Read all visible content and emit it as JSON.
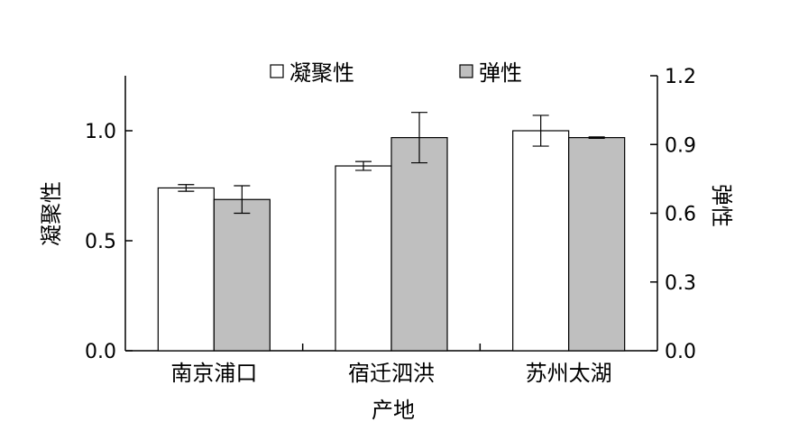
{
  "chart_data": {
    "type": "bar",
    "xlabel": "产地",
    "ylabel_left": "凝聚性",
    "ylabel_right": "弹性",
    "categories": [
      "南京浦口",
      "宿迁泗洪",
      "苏州太湖"
    ],
    "ylim_left": [
      0,
      1.25
    ],
    "ylim_right": [
      0,
      1.2
    ],
    "yticks_left": [
      "0.0",
      "0.5",
      "1.0"
    ],
    "yticks_right": [
      "0.0",
      "0.3",
      "0.6",
      "0.9",
      "1.2"
    ],
    "legend_position": "top",
    "grid": false,
    "series": [
      {
        "name": "凝聚性",
        "axis": "left",
        "color": "#ffffff",
        "values": [
          0.74,
          0.84,
          1.0
        ],
        "errors": [
          0.015,
          0.02,
          0.07
        ]
      },
      {
        "name": "弹性",
        "axis": "right",
        "color": "#bfbfbf",
        "values": [
          0.66,
          0.93,
          0.93
        ],
        "errors": [
          0.06,
          0.11,
          0.003
        ]
      }
    ]
  }
}
